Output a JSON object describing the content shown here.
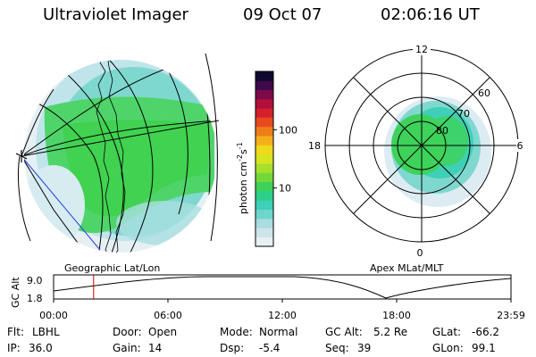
{
  "header": {
    "title": "Ultraviolet Imager",
    "date": "09 Oct 07",
    "time": "02:06:16 UT"
  },
  "colorbar": {
    "label": "photon cm",
    "label_sup1": "-2",
    "label_s": "s",
    "label_sup2": "-1",
    "ticks": [
      {
        "value": 100,
        "label": "100"
      },
      {
        "value": 10,
        "label": "10"
      }
    ],
    "colors": [
      "#e8f0f4",
      "#cfe3ea",
      "#a9dde0",
      "#6fd6cc",
      "#3fd0b8",
      "#2ecf8a",
      "#3ed25a",
      "#74d83a",
      "#a6e02a",
      "#d6e422",
      "#f0d81c",
      "#f3b01a",
      "#ef7e1a",
      "#e84a20",
      "#d4202c",
      "#b0103a",
      "#7a0a4a",
      "#3e0a4a",
      "#10082e"
    ]
  },
  "polar": {
    "ring_labels": [
      "80",
      "70",
      "60"
    ],
    "clock_labels": {
      "top": "12",
      "bottom": "0",
      "left": "18",
      "right": "6"
    }
  },
  "timeline": {
    "ylabel": "GC Alt",
    "ymax_label": "9.0",
    "ymin_label": "1.8",
    "left_caption": "Geographic Lat/Lon",
    "right_caption": "Apex MLat/MLT",
    "x_labels": [
      "00:00",
      "06:00",
      "12:00",
      "18:00",
      "23:59"
    ],
    "current_time_hours": 2.1
  },
  "info": {
    "flt_label": "Flt:",
    "flt_value": "LBHL",
    "ip_label": "IP:",
    "ip_value": "36.0",
    "door_label": "Door:",
    "door_value": "Open",
    "gain_label": "Gain:",
    "gain_value": "14",
    "mode_label": "Mode:",
    "mode_value": "Normal",
    "dsp_label": "Dsp:",
    "dsp_value": "-5.4",
    "gcalt_label": "GC Alt:",
    "gcalt_value": "5.2 Re",
    "seq_label": "Seq:",
    "seq_value": "39",
    "glat_label": "GLat:",
    "glat_value": "-66.2",
    "glon_label": "GLon:",
    "glon_value": "99.1"
  }
}
